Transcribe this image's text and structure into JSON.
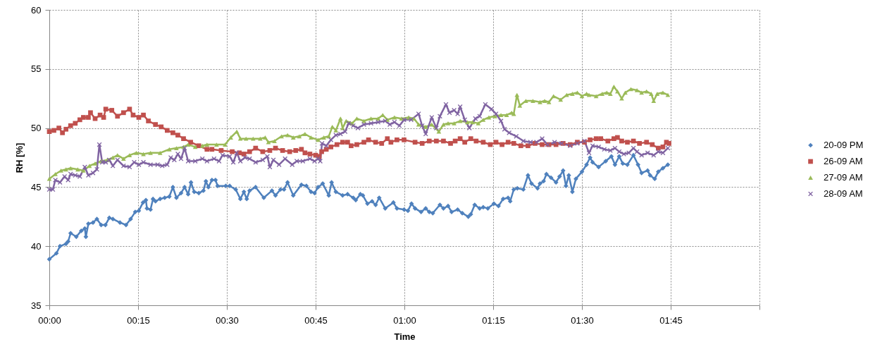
{
  "chart_data": {
    "type": "line",
    "xlabel": "Time",
    "ylabel": "RH [%]",
    "xlim": [
      0,
      2
    ],
    "ylim": [
      35,
      60
    ],
    "xticks": [
      {
        "value": 0,
        "label": "00:00"
      },
      {
        "value": 0.25,
        "label": "00:15"
      },
      {
        "value": 0.5,
        "label": "00:30"
      },
      {
        "value": 0.75,
        "label": "00:45"
      },
      {
        "value": 1,
        "label": "01:00"
      },
      {
        "value": 1.25,
        "label": "01:15"
      },
      {
        "value": 1.5,
        "label": "01:30"
      },
      {
        "value": 1.75,
        "label": "01:45"
      },
      {
        "value": 2,
        "label": null
      }
    ],
    "yticks": [
      35,
      40,
      45,
      50,
      55,
      60
    ],
    "grid": true,
    "legend": "right",
    "series": [
      {
        "name": "20-09 PM",
        "color": "#4f81bd",
        "marker": "diamond",
        "x": [
          0,
          0.02,
          0.03,
          0.047,
          0.053,
          0.06,
          0.076,
          0.09,
          0.1,
          0.103,
          0.11,
          0.123,
          0.134,
          0.146,
          0.158,
          0.169,
          0.179,
          0.199,
          0.216,
          0.229,
          0.242,
          0.252,
          0.264,
          0.272,
          0.275,
          0.285,
          0.292,
          0.299,
          0.312,
          0.325,
          0.338,
          0.348,
          0.358,
          0.371,
          0.381,
          0.391,
          0.399,
          0.408,
          0.421,
          0.434,
          0.441,
          0.448,
          0.458,
          0.468,
          0.474,
          0.497,
          0.508,
          0.525,
          0.538,
          0.548,
          0.556,
          0.564,
          0.581,
          0.604,
          0.627,
          0.637,
          0.651,
          0.661,
          0.671,
          0.687,
          0.71,
          0.724,
          0.737,
          0.747,
          0.757,
          0.77,
          0.787,
          0.795,
          0.807,
          0.826,
          0.84,
          0.856,
          0.863,
          0.876,
          0.883,
          0.896,
          0.909,
          0.919,
          0.929,
          0.946,
          0.969,
          0.979,
          0.999,
          1.01,
          1.02,
          1.03,
          1.047,
          1.06,
          1.07,
          1.08,
          1.1,
          1.11,
          1.123,
          1.133,
          1.15,
          1.163,
          1.18,
          1.187,
          1.198,
          1.212,
          1.222,
          1.235,
          1.252,
          1.265,
          1.278,
          1.292,
          1.298,
          1.308,
          1.318,
          1.335,
          1.348,
          1.358,
          1.375,
          1.382,
          1.392,
          1.4,
          1.413,
          1.427,
          1.437,
          1.447,
          1.455,
          1.463,
          1.473,
          1.483,
          1.5,
          1.513,
          1.523,
          1.53,
          1.547,
          1.567,
          1.583,
          1.593,
          1.605,
          1.615,
          1.628,
          1.645,
          1.658,
          1.668,
          1.685,
          1.692,
          1.705,
          1.715,
          1.728,
          1.742
        ],
        "values": [
          38.9,
          39.4,
          40.0,
          40.2,
          40.4,
          41.1,
          40.8,
          41.3,
          41.5,
          40.8,
          41.9,
          42.0,
          42.3,
          41.8,
          41.8,
          42.4,
          42.3,
          42.0,
          41.8,
          42.3,
          42.9,
          43.0,
          43.7,
          43.9,
          43.2,
          43.1,
          44.0,
          43.8,
          44.0,
          44.1,
          44.2,
          45.0,
          44.1,
          44.5,
          45.0,
          44.4,
          45.4,
          44.6,
          44.5,
          44.7,
          45.5,
          45.0,
          45.6,
          45.6,
          45.1,
          45.1,
          45.1,
          44.8,
          44.0,
          44.6,
          44.0,
          44.7,
          45.0,
          44.1,
          44.7,
          44.3,
          44.8,
          44.8,
          45.4,
          44.3,
          45.2,
          45.1,
          44.6,
          44.5,
          45.0,
          45.3,
          44.3,
          45.4,
          44.6,
          44.3,
          44.4,
          44.1,
          43.9,
          44.4,
          44.3,
          43.6,
          43.8,
          43.5,
          44.1,
          43.2,
          43.7,
          43.2,
          43.1,
          43.0,
          43.6,
          43.2,
          42.9,
          43.2,
          42.9,
          42.8,
          43.5,
          43.2,
          43.4,
          42.9,
          43.1,
          42.8,
          42.5,
          42.7,
          43.5,
          43.2,
          43.3,
          43.2,
          43.6,
          43.4,
          44.0,
          44.1,
          43.8,
          44.8,
          44.9,
          44.8,
          46.0,
          45.3,
          44.9,
          45.3,
          45.5,
          46.1,
          45.8,
          45.4,
          45.9,
          46.4,
          45.1,
          46.0,
          44.6,
          45.7,
          46.3,
          46.9,
          47.5,
          47.1,
          46.7,
          47.2,
          47.6,
          46.9,
          47.6,
          47.0,
          46.9,
          47.7,
          46.9,
          46.2,
          46.4,
          46.0,
          45.7,
          46.3,
          46.6,
          46.9
        ]
      },
      {
        "name": "26-09 AM",
        "color": "#c0504d",
        "marker": "square",
        "x": [
          0,
          0.013,
          0.027,
          0.037,
          0.047,
          0.06,
          0.073,
          0.086,
          0.096,
          0.11,
          0.116,
          0.129,
          0.143,
          0.153,
          0.159,
          0.176,
          0.192,
          0.209,
          0.226,
          0.236,
          0.252,
          0.265,
          0.279,
          0.299,
          0.315,
          0.332,
          0.348,
          0.362,
          0.378,
          0.398,
          0.421,
          0.444,
          0.458,
          0.484,
          0.515,
          0.535,
          0.548,
          0.564,
          0.581,
          0.601,
          0.621,
          0.637,
          0.657,
          0.677,
          0.694,
          0.71,
          0.72,
          0.734,
          0.75,
          0.76,
          0.767,
          0.78,
          0.793,
          0.81,
          0.826,
          0.84,
          0.85,
          0.866,
          0.886,
          0.899,
          0.919,
          0.936,
          0.952,
          0.962,
          0.979,
          0.999,
          1.03,
          1.05,
          1.07,
          1.09,
          1.11,
          1.13,
          1.143,
          1.157,
          1.17,
          1.187,
          1.202,
          1.222,
          1.242,
          1.258,
          1.275,
          1.292,
          1.308,
          1.328,
          1.348,
          1.368,
          1.388,
          1.407,
          1.427,
          1.447,
          1.467,
          1.487,
          1.507,
          1.523,
          1.54,
          1.553,
          1.573,
          1.59,
          1.6,
          1.612,
          1.628,
          1.645,
          1.662,
          1.682,
          1.698,
          1.715,
          1.728,
          1.738,
          1.745
        ],
        "values": [
          49.7,
          49.8,
          50.0,
          49.6,
          49.9,
          50.2,
          50.4,
          50.7,
          50.9,
          50.9,
          51.3,
          50.8,
          51.1,
          50.9,
          51.6,
          51.5,
          51.0,
          51.3,
          51.6,
          51.1,
          50.9,
          51.1,
          50.6,
          50.3,
          50.1,
          49.8,
          49.6,
          49.4,
          49.1,
          48.8,
          48.5,
          48.2,
          48.2,
          48.1,
          48.0,
          47.9,
          47.8,
          48.0,
          48.3,
          48.0,
          48.1,
          48.3,
          48.1,
          48.0,
          48.1,
          48.2,
          47.9,
          47.8,
          47.7,
          47.6,
          48.0,
          48.2,
          48.4,
          48.6,
          48.8,
          48.8,
          48.5,
          48.6,
          48.8,
          49.0,
          48.8,
          48.7,
          49.1,
          48.8,
          49.0,
          49.0,
          48.8,
          48.7,
          48.9,
          48.9,
          48.9,
          48.7,
          48.9,
          49.1,
          48.8,
          49.1,
          48.9,
          48.8,
          48.6,
          48.8,
          48.6,
          48.8,
          48.7,
          48.5,
          48.5,
          48.7,
          48.6,
          48.6,
          48.6,
          48.7,
          48.6,
          48.8,
          48.8,
          49.0,
          49.1,
          49.1,
          48.9,
          49.1,
          49.2,
          48.9,
          48.8,
          48.9,
          48.7,
          48.8,
          48.6,
          48.3,
          48.4,
          48.8,
          48.7
        ]
      },
      {
        "name": "27-09 AM",
        "color": "#9bbb59",
        "marker": "triangle",
        "x": [
          0,
          0.017,
          0.033,
          0.047,
          0.06,
          0.08,
          0.096,
          0.113,
          0.129,
          0.146,
          0.163,
          0.179,
          0.192,
          0.209,
          0.226,
          0.245,
          0.265,
          0.285,
          0.312,
          0.338,
          0.358,
          0.378,
          0.391,
          0.411,
          0.431,
          0.444,
          0.471,
          0.495,
          0.511,
          0.528,
          0.538,
          0.554,
          0.574,
          0.594,
          0.608,
          0.617,
          0.634,
          0.654,
          0.671,
          0.687,
          0.704,
          0.72,
          0.737,
          0.757,
          0.773,
          0.787,
          0.797,
          0.807,
          0.82,
          0.826,
          0.836,
          0.853,
          0.866,
          0.886,
          0.906,
          0.926,
          0.939,
          0.952,
          0.972,
          0.992,
          1.012,
          1.027,
          1.04,
          1.06,
          1.077,
          1.097,
          1.11,
          1.123,
          1.14,
          1.157,
          1.177,
          1.192,
          1.208,
          1.222,
          1.238,
          1.255,
          1.272,
          1.288,
          1.302,
          1.308,
          1.317,
          1.325,
          1.342,
          1.362,
          1.382,
          1.395,
          1.407,
          1.42,
          1.44,
          1.457,
          1.473,
          1.487,
          1.5,
          1.513,
          1.52,
          1.54,
          1.557,
          1.57,
          1.58,
          1.59,
          1.6,
          1.612,
          1.622,
          1.638,
          1.655,
          1.668,
          1.682,
          1.695,
          1.702,
          1.712,
          1.728,
          1.742
        ],
        "values": [
          45.7,
          46.1,
          46.4,
          46.5,
          46.6,
          46.5,
          46.4,
          46.8,
          47.0,
          47.2,
          47.3,
          47.5,
          47.7,
          47.4,
          47.7,
          47.9,
          47.8,
          47.9,
          47.9,
          48.2,
          48.3,
          48.4,
          48.6,
          48.4,
          48.5,
          48.6,
          48.6,
          48.6,
          49.2,
          49.7,
          49.1,
          49.1,
          49.1,
          49.1,
          49.2,
          48.8,
          48.9,
          49.3,
          49.4,
          49.2,
          49.3,
          49.5,
          49.2,
          49.0,
          49.2,
          49.3,
          50.1,
          49.8,
          50.8,
          50.0,
          50.6,
          50.4,
          50.8,
          50.6,
          50.8,
          50.8,
          51.1,
          50.7,
          50.9,
          50.8,
          50.9,
          50.8,
          50.3,
          50.1,
          50.3,
          49.7,
          50.3,
          50.4,
          50.4,
          50.6,
          50.5,
          50.5,
          50.4,
          50.7,
          50.9,
          51.0,
          51.1,
          51.1,
          51.3,
          51.2,
          52.8,
          51.9,
          52.3,
          52.3,
          52.2,
          52.3,
          52.2,
          52.7,
          52.4,
          52.8,
          52.9,
          53.0,
          52.7,
          52.9,
          52.8,
          52.7,
          52.9,
          53.0,
          52.9,
          53.5,
          53.1,
          52.5,
          53.0,
          53.3,
          53.2,
          53.0,
          53.1,
          52.9,
          52.3,
          52.9,
          53.0,
          52.8
        ]
      },
      {
        "name": "28-09 AM",
        "color": "#8064a2",
        "marker": "cross",
        "x": [
          0,
          0.01,
          0.017,
          0.03,
          0.043,
          0.053,
          0.06,
          0.073,
          0.086,
          0.1,
          0.11,
          0.123,
          0.134,
          0.141,
          0.149,
          0.159,
          0.169,
          0.179,
          0.192,
          0.209,
          0.226,
          0.239,
          0.252,
          0.265,
          0.285,
          0.305,
          0.318,
          0.332,
          0.342,
          0.352,
          0.362,
          0.371,
          0.381,
          0.391,
          0.411,
          0.431,
          0.444,
          0.464,
          0.478,
          0.488,
          0.508,
          0.518,
          0.528,
          0.538,
          0.551,
          0.564,
          0.581,
          0.601,
          0.614,
          0.621,
          0.631,
          0.647,
          0.664,
          0.684,
          0.697,
          0.714,
          0.734,
          0.747,
          0.757,
          0.763,
          0.768,
          0.78,
          0.793,
          0.807,
          0.82,
          0.833,
          0.843,
          0.856,
          0.869,
          0.886,
          0.906,
          0.926,
          0.946,
          0.959,
          0.972,
          0.986,
          0.999,
          1.019,
          1.04,
          1.05,
          1.06,
          1.077,
          1.09,
          1.1,
          1.117,
          1.127,
          1.14,
          1.15,
          1.157,
          1.17,
          1.183,
          1.2,
          1.212,
          1.228,
          1.245,
          1.258,
          1.272,
          1.282,
          1.295,
          1.315,
          1.335,
          1.355,
          1.372,
          1.388,
          1.403,
          1.423,
          1.443,
          1.467,
          1.487,
          1.507,
          1.52,
          1.53,
          1.547,
          1.563,
          1.58,
          1.593,
          1.605,
          1.618,
          1.632,
          1.645,
          1.655,
          1.668,
          1.685,
          1.702,
          1.715,
          1.728,
          1.742
        ],
        "values": [
          44.8,
          44.8,
          45.6,
          45.4,
          45.9,
          45.6,
          46.1,
          46.0,
          45.9,
          46.7,
          46.0,
          46.2,
          46.5,
          48.6,
          47.1,
          47.1,
          47.3,
          46.8,
          47.3,
          46.8,
          46.7,
          47.1,
          46.9,
          47.1,
          46.9,
          46.9,
          46.8,
          46.9,
          47.5,
          47.3,
          47.8,
          47.4,
          48.3,
          47.2,
          47.2,
          47.4,
          47.2,
          47.4,
          47.2,
          47.7,
          47.6,
          47.1,
          47.9,
          47.2,
          47.5,
          47.4,
          47.1,
          47.3,
          47.6,
          46.7,
          47.3,
          46.9,
          47.4,
          46.9,
          47.2,
          47.2,
          47.4,
          47.2,
          47.4,
          47.2,
          48.7,
          48.5,
          49.0,
          49.4,
          49.5,
          49.7,
          50.4,
          50.2,
          50.0,
          50.3,
          50.4,
          50.5,
          50.6,
          50.3,
          50.5,
          50.2,
          50.7,
          50.7,
          51.2,
          50.2,
          49.5,
          50.9,
          50.0,
          51.0,
          52.0,
          51.3,
          51.5,
          51.2,
          51.8,
          50.7,
          50.0,
          50.8,
          51.0,
          52.0,
          51.6,
          51.2,
          50.6,
          49.9,
          49.6,
          49.3,
          48.9,
          48.8,
          48.8,
          49.1,
          48.6,
          48.8,
          48.7,
          48.5,
          48.7,
          48.9,
          47.9,
          48.5,
          48.4,
          48.2,
          48.1,
          48.3,
          48.0,
          47.8,
          47.9,
          48.3,
          48.0,
          47.7,
          47.9,
          47.7,
          48.0,
          47.9,
          48.3
        ]
      }
    ]
  }
}
